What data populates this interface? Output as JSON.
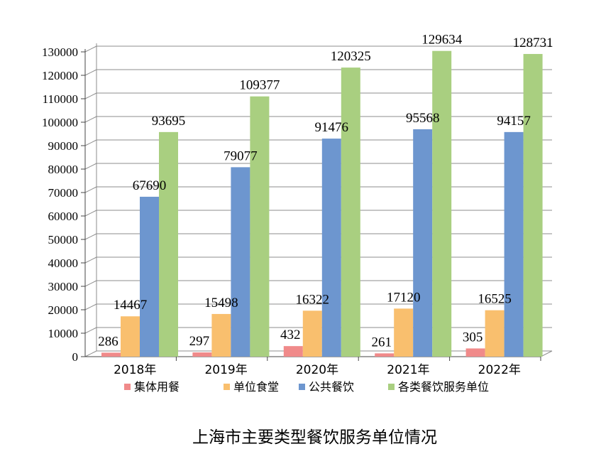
{
  "chart_data": {
    "type": "bar",
    "title": "",
    "caption": "上海市主要类型餐饮服务单位情况",
    "xlabel": "",
    "ylabel": "",
    "categories": [
      "2018年",
      "2019年",
      "2020年",
      "2021年",
      "2022年"
    ],
    "ylim": [
      0,
      130000
    ],
    "yticks": [
      "0",
      "10000",
      "20000",
      "30000",
      "40000",
      "50000",
      "60000",
      "70000",
      "80000",
      "90000",
      "100000",
      "110000",
      "120000",
      "130000"
    ],
    "grid": true,
    "legend": "bottom",
    "series": [
      {
        "name": "集体用餐",
        "color": "#f08a8a",
        "values": [
          286,
          297,
          432,
          261,
          305
        ],
        "heights": [
          1700,
          1800,
          4500,
          1400,
          3500
        ]
      },
      {
        "name": "单位食堂",
        "color": "#f9bf6e",
        "values": [
          14467,
          15498,
          16322,
          17120,
          16525
        ],
        "heights": [
          17200,
          18200,
          19600,
          20500,
          19800
        ]
      },
      {
        "name": "公共餐饮",
        "color": "#6d96cf",
        "values": [
          67690,
          79077,
          91476,
          95568,
          94157
        ],
        "heights": [
          68200,
          80800,
          93000,
          97000,
          95800
        ]
      },
      {
        "name": "各类餐饮服务单位",
        "color": "#a9cf80",
        "values": [
          93695,
          109377,
          120325,
          129634,
          128731
        ],
        "heights": [
          95800,
          111000,
          123300,
          130400,
          129100
        ]
      }
    ]
  }
}
